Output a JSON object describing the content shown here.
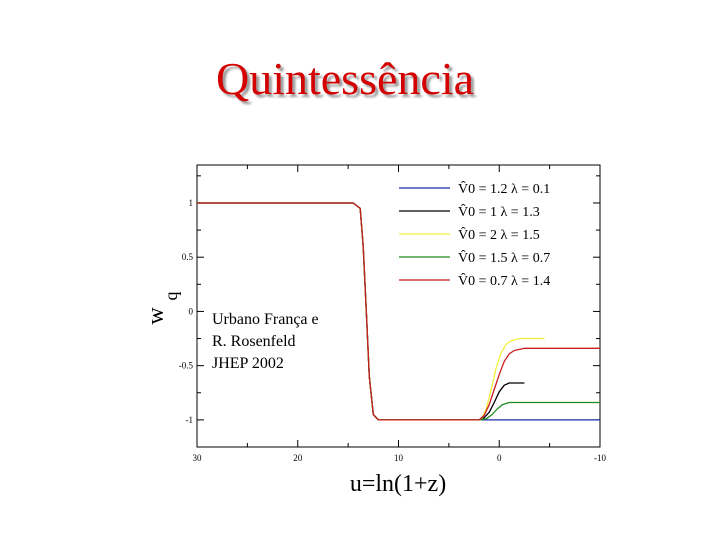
{
  "slide": {
    "title": "Quintessência",
    "note_lines": [
      "Urbano França e",
      "R. Rosenfeld",
      "JHEP 2002"
    ]
  },
  "chart_data": {
    "type": "line",
    "xlabel": "u=ln(1+z)",
    "ylabel_parts": [
      "w",
      "q"
    ],
    "xlim": [
      30,
      -10
    ],
    "ylim": [
      -1.25,
      1.35
    ],
    "x_ticks": [
      30,
      20,
      10,
      0,
      -10
    ],
    "x_tick_labels": [
      "30",
      "20",
      "10",
      "0",
      "-10"
    ],
    "y_ticks": [
      1,
      0.5,
      0,
      -0.5,
      -1
    ],
    "y_tick_labels": [
      "1",
      "0.5",
      "0",
      "-0.5",
      "-1"
    ],
    "legend_position": "top-right",
    "series": [
      {
        "name": "V̂0 = 1.2   λ = 0.1",
        "color": "#1c2fa8",
        "x": [
          30,
          14.5,
          13.8,
          13.5,
          13.2,
          12.9,
          12.5,
          12,
          11,
          10,
          2,
          0,
          -10
        ],
        "y": [
          1,
          1,
          0.95,
          0.6,
          0,
          -0.6,
          -0.95,
          -1,
          -1,
          -1,
          -1,
          -1,
          -1
        ]
      },
      {
        "name": "V̂0 = 1   λ = 1.3",
        "color": "#000000",
        "x": [
          30,
          14.5,
          13.8,
          13.5,
          13.2,
          12.9,
          12.5,
          12,
          10,
          2,
          1.5,
          1,
          0.5,
          0,
          -0.5,
          -1,
          -1.5,
          -2.5
        ],
        "y": [
          1,
          1,
          0.95,
          0.6,
          0,
          -0.6,
          -0.95,
          -1,
          -1,
          -1,
          -0.98,
          -0.93,
          -0.84,
          -0.74,
          -0.68,
          -0.66,
          -0.66,
          -0.66
        ]
      },
      {
        "name": "V̂0 = 2   λ = 1.5",
        "color": "#f4ef3c",
        "x": [
          30,
          14.5,
          13.8,
          13.5,
          13.2,
          12.9,
          12.5,
          12,
          10,
          1.8,
          1.3,
          0.8,
          0.3,
          -0.2,
          -0.7,
          -1.2,
          -2,
          -3,
          -4.5
        ],
        "y": [
          1,
          1,
          0.95,
          0.6,
          0,
          -0.6,
          -0.95,
          -1,
          -1,
          -1,
          -0.9,
          -0.72,
          -0.52,
          -0.38,
          -0.3,
          -0.27,
          -0.25,
          -0.25,
          -0.25
        ]
      },
      {
        "name": "V̂0 = 1.5   λ = 0.7",
        "color": "#1e8a1e",
        "x": [
          30,
          14.5,
          13.8,
          13.5,
          13.2,
          12.9,
          12.5,
          12,
          10,
          2,
          1.3,
          0.7,
          0.2,
          -0.3,
          -1,
          -2,
          -4,
          -6,
          -10
        ],
        "y": [
          1,
          1,
          0.95,
          0.6,
          0,
          -0.6,
          -0.95,
          -1,
          -1,
          -1,
          -0.99,
          -0.95,
          -0.9,
          -0.86,
          -0.84,
          -0.84,
          -0.84,
          -0.84,
          -0.84
        ]
      },
      {
        "name": "V̂0 = 0.7   λ = 1.4",
        "color": "#c81e1e",
        "x": [
          30,
          14.5,
          13.8,
          13.5,
          13.2,
          12.9,
          12.5,
          12,
          10,
          2,
          1.5,
          1,
          0.5,
          0,
          -0.5,
          -1,
          -1.5,
          -2.5,
          -4,
          -6,
          -10
        ],
        "y": [
          1,
          1,
          0.95,
          0.6,
          0,
          -0.6,
          -0.95,
          -1,
          -1,
          -1,
          -0.96,
          -0.86,
          -0.72,
          -0.58,
          -0.46,
          -0.39,
          -0.36,
          -0.34,
          -0.34,
          -0.34,
          -0.34
        ]
      }
    ]
  }
}
